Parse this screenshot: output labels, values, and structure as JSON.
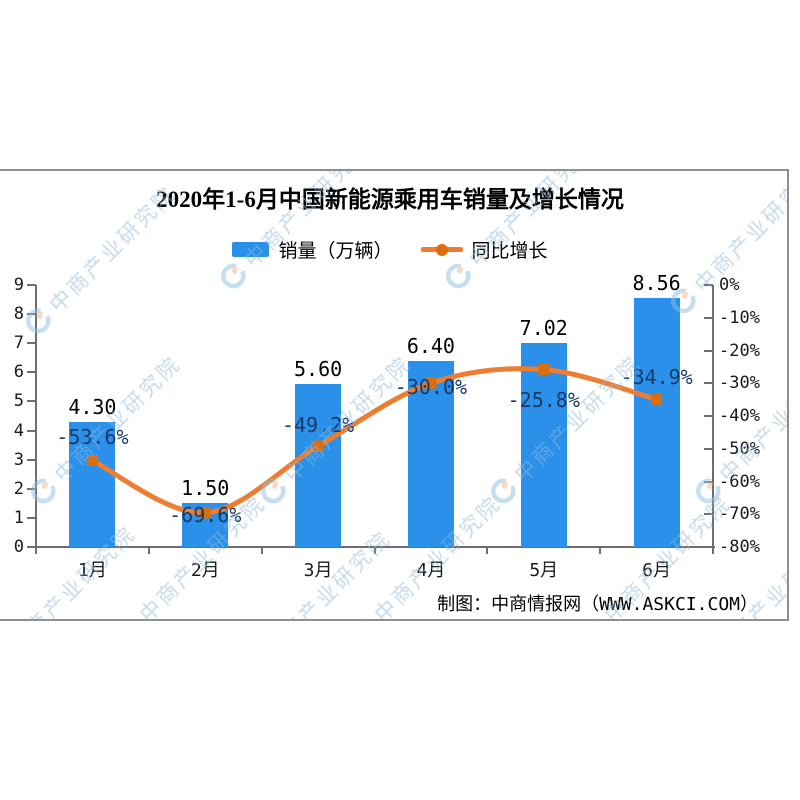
{
  "title": "2020年1-6月中国新能源乘用车销量及增长情况",
  "legend": {
    "items": [
      {
        "label": "销量（万辆）",
        "marker": "bar-swatch",
        "color": "#2a90e9"
      },
      {
        "label": "同比增长",
        "marker": "line-dot",
        "color": "#ee7d2f"
      }
    ]
  },
  "footer": {
    "credit": "制图：中商情报网（WWW.ASKCI.COM）"
  },
  "watermark": {
    "text": "中商产业研究院"
  },
  "colors": {
    "bar": "#2a90e9",
    "line": "#ee7d2f",
    "line_marker": "#dd6e10",
    "growth_label": "#1b3a66",
    "value_label": "#000000",
    "frame": "#8f8f8f",
    "axis": "#6e6e6e"
  },
  "chart_data": {
    "type": "combo",
    "title": "2020年1-6月中国新能源乘用车销量及增长情况",
    "categories": [
      "1月",
      "2月",
      "3月",
      "4月",
      "5月",
      "6月"
    ],
    "series": [
      {
        "name": "销量（万辆）",
        "type": "bar",
        "axis": "left",
        "values": [
          4.3,
          1.5,
          5.6,
          6.4,
          7.02,
          8.56
        ],
        "value_labels": [
          "4.30",
          "1.50",
          "5.60",
          "6.40",
          "7.02",
          "8.56"
        ]
      },
      {
        "name": "同比增长",
        "type": "line",
        "axis": "right",
        "values": [
          -53.6,
          -69.6,
          -49.2,
          -30.0,
          -25.8,
          -34.9
        ],
        "value_labels": [
          "-53.6%",
          "-69.6%",
          "-49.2%",
          "-30.0%",
          "-25.8%",
          "-34.9%"
        ]
      }
    ],
    "left_axis": {
      "min": 0,
      "max": 9,
      "tick_labels": [
        "0",
        "1",
        "2",
        "3",
        "4",
        "5",
        "6",
        "7",
        "8",
        "9"
      ]
    },
    "right_axis": {
      "min": -80,
      "max": 0,
      "tick_labels": [
        "0%",
        "-10%",
        "-20%",
        "-30%",
        "-40%",
        "-50%",
        "-60%",
        "-70%",
        "-80%"
      ]
    },
    "legend_position": "top",
    "grid": false,
    "growth_label_offsets": [
      -36,
      -10,
      -33,
      -8,
      19,
      -34
    ],
    "credit": "制图：中商情报网（WWW.ASKCI.COM）"
  }
}
